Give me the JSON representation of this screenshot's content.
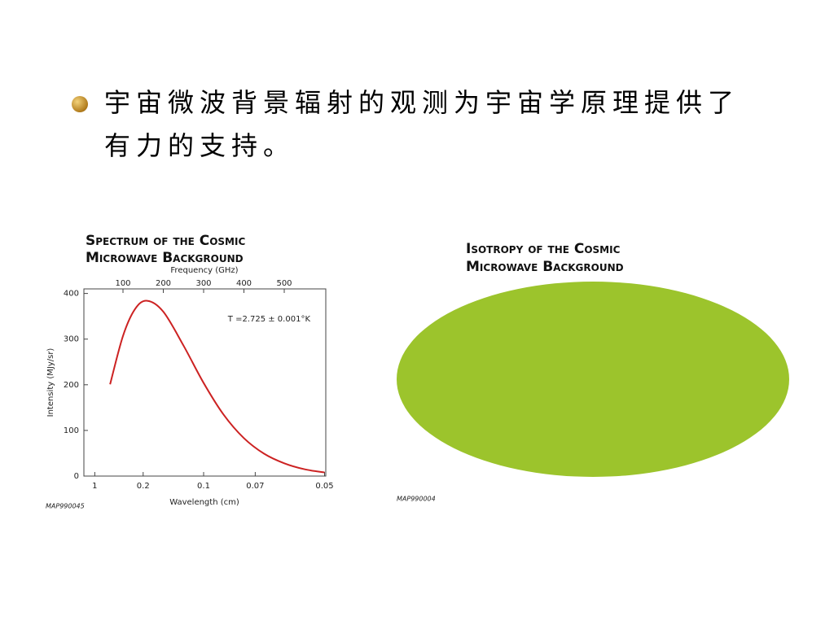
{
  "bullet": "宇宙微波背景辐射的观测为宇宙学原理提供了有力的支持。",
  "chart_data": {
    "type": "line",
    "title": [
      "Spectrum of the Cosmic",
      "Microwave Background"
    ],
    "x2label": "Frequency (GHz)",
    "xlabel": "Wavelength (cm)",
    "ylabel": "Intensity (MJy/sr)",
    "annotation": "T =2.725 ± 0.001°K",
    "code": "MAP990045",
    "xlim": [
      3,
      603
    ],
    "ylim": [
      0,
      410
    ],
    "x2ticks": [
      100,
      200,
      300,
      400,
      500
    ],
    "xticks": [
      {
        "value": 30,
        "label": "1"
      },
      {
        "value": 150,
        "label": "0.2"
      },
      {
        "value": 300,
        "label": "0.1"
      },
      {
        "value": 428,
        "label": "0.07"
      },
      {
        "value": 600,
        "label": "0.05"
      }
    ],
    "yticks": [
      0,
      100,
      200,
      300,
      400
    ],
    "color": "#cc2222",
    "x": [
      68,
      100,
      130,
      160,
      200,
      250,
      300,
      350,
      400,
      450,
      500,
      550,
      600
    ],
    "values": [
      201,
      307,
      366,
      384,
      360,
      286,
      204,
      134,
      83,
      49,
      28,
      15,
      8
    ]
  },
  "isotropy_figure": {
    "title": [
      "Isotropy of the Cosmic",
      "Microwave Background"
    ],
    "code": "MAP990004"
  }
}
